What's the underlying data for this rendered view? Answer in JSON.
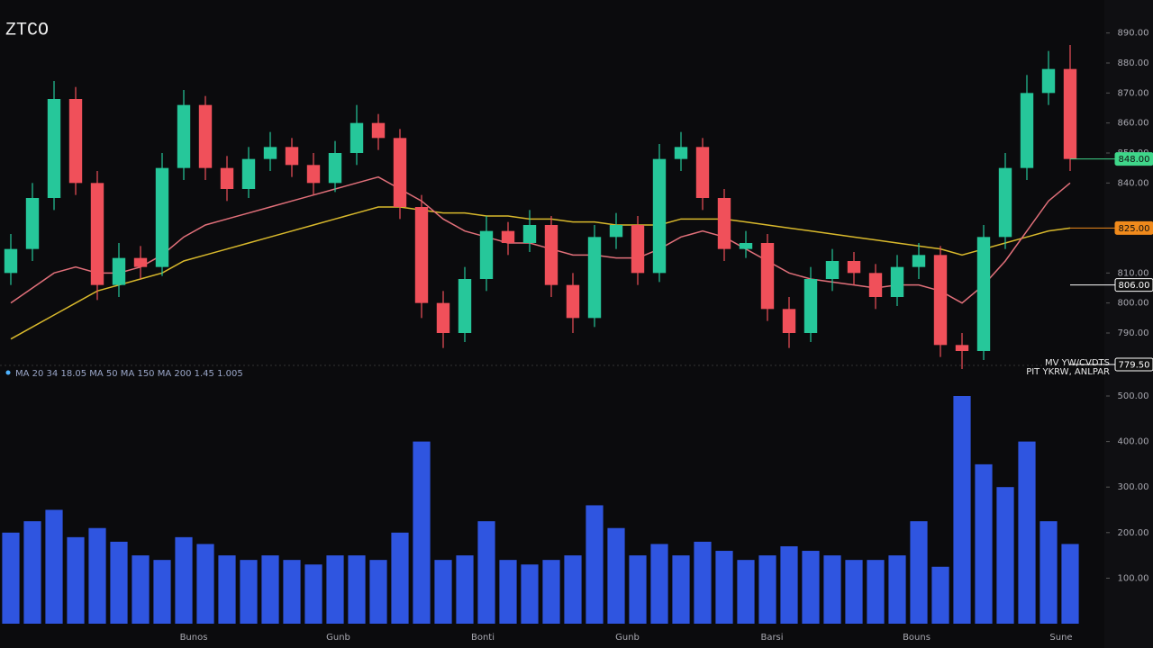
{
  "chart_data": {
    "type": "candlestick",
    "title": "ZTCO",
    "legend_text": "MA 20 34 18.05 MA 50 MA 150 MA 200 1.45 1.005",
    "annotation": [
      "MV YW/CVDTS",
      "PIT YKRW, ANLPAR"
    ],
    "up_color": "#26c79a",
    "down_color": "#f0505a",
    "open": [
      810,
      818,
      835,
      868,
      840,
      806,
      815,
      812,
      845,
      866,
      845,
      838,
      848,
      852,
      846,
      840,
      850,
      860,
      855,
      832,
      800,
      790,
      808,
      824,
      820,
      826,
      806,
      795,
      822,
      826,
      810,
      848,
      852,
      835,
      818,
      820,
      798,
      790,
      808,
      814,
      810,
      802,
      812,
      816,
      786,
      784,
      822,
      845,
      870,
      878
    ],
    "high": [
      823,
      840,
      874,
      872,
      844,
      820,
      819,
      850,
      871,
      869,
      849,
      852,
      857,
      855,
      850,
      854,
      866,
      863,
      858,
      836,
      804,
      812,
      829,
      827,
      831,
      829,
      810,
      826,
      830,
      829,
      853,
      857,
      855,
      838,
      824,
      823,
      802,
      812,
      818,
      817,
      813,
      816,
      820,
      819,
      790,
      826,
      850,
      876,
      884,
      886
    ],
    "low": [
      806,
      814,
      831,
      836,
      801,
      802,
      808,
      809,
      841,
      841,
      834,
      835,
      844,
      842,
      836,
      837,
      846,
      851,
      828,
      795,
      785,
      787,
      804,
      816,
      817,
      802,
      790,
      792,
      818,
      806,
      807,
      844,
      831,
      814,
      815,
      794,
      785,
      787,
      804,
      806,
      798,
      799,
      808,
      782,
      778,
      781,
      818,
      841,
      866,
      844
    ],
    "close": [
      818,
      835,
      868,
      840,
      806,
      815,
      812,
      845,
      866,
      845,
      838,
      848,
      852,
      846,
      840,
      850,
      860,
      855,
      832,
      800,
      790,
      808,
      824,
      820,
      826,
      806,
      795,
      822,
      826,
      810,
      848,
      852,
      835,
      818,
      820,
      798,
      790,
      808,
      814,
      810,
      802,
      812,
      816,
      786,
      784,
      822,
      845,
      870,
      878,
      848
    ],
    "lines": [
      {
        "color": "#d9b92c",
        "values": [
          788,
          792,
          796,
          800,
          804,
          806,
          808,
          810,
          814,
          816,
          818,
          820,
          822,
          824,
          826,
          828,
          830,
          832,
          832,
          831,
          830,
          830,
          829,
          829,
          828,
          828,
          827,
          827,
          826,
          826,
          826,
          828,
          828,
          828,
          827,
          826,
          825,
          824,
          823,
          822,
          821,
          820,
          819,
          818,
          816,
          818,
          820,
          822,
          824,
          825
        ]
      },
      {
        "color": "#e2707a",
        "values": [
          800,
          805,
          810,
          812,
          810,
          810,
          812,
          816,
          822,
          826,
          828,
          830,
          832,
          834,
          836,
          838,
          840,
          842,
          838,
          834,
          828,
          824,
          822,
          820,
          820,
          818,
          816,
          816,
          815,
          815,
          818,
          822,
          824,
          822,
          818,
          814,
          810,
          808,
          807,
          806,
          805,
          806,
          806,
          804,
          800,
          806,
          814,
          824,
          834,
          840
        ]
      }
    ],
    "ylim": [
      775,
      895
    ],
    "yticks": [
      {
        "value": 890,
        "label": "890.00"
      },
      {
        "value": 880,
        "label": "880.00"
      },
      {
        "value": 870,
        "label": "870.00"
      },
      {
        "value": 860,
        "label": "860.00"
      },
      {
        "value": 850,
        "label": "850.00"
      },
      {
        "value": 840,
        "label": "840.00"
      },
      {
        "value": 810,
        "label": "810.00"
      },
      {
        "value": 800,
        "label": "800.00"
      },
      {
        "value": 790,
        "label": "790.00"
      }
    ],
    "badges": [
      {
        "value": 848,
        "label": "848.00",
        "color": "#3fd68a"
      },
      {
        "value": 825,
        "label": "825.00",
        "color": "#f08a1c"
      },
      {
        "value": 806,
        "label": "806.00",
        "color": "#ffffff"
      },
      {
        "value": 779.5,
        "label": "779.50",
        "color": "#ffffff"
      }
    ],
    "volume": {
      "color": "#2f55e0",
      "values": [
        200,
        225,
        250,
        190,
        210,
        180,
        150,
        140,
        190,
        175,
        150,
        140,
        150,
        140,
        130,
        150,
        150,
        140,
        200,
        400,
        140,
        150,
        225,
        140,
        130,
        140,
        150,
        260,
        210,
        150,
        175,
        150,
        180,
        160,
        140,
        150,
        170,
        160,
        150,
        140,
        140,
        150,
        225,
        125,
        500,
        350,
        300,
        400,
        225,
        175
      ],
      "ylim": [
        0,
        500
      ],
      "yticks": [
        {
          "value": 500,
          "label": "500.00"
        },
        {
          "value": 400,
          "label": "400.00"
        },
        {
          "value": 300,
          "label": "300.00"
        },
        {
          "value": 200,
          "label": "200.00"
        },
        {
          "value": 100,
          "label": "100.00"
        }
      ]
    },
    "x_labels": [
      "Bunos",
      "Gunb",
      "Bonti",
      "Gunb",
      "Barsi",
      "Bouns",
      "Sune"
    ]
  }
}
